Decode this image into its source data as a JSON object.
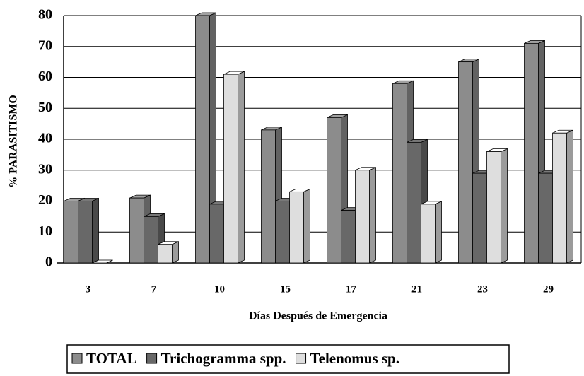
{
  "chart_data": {
    "type": "bar3d",
    "x_label": "Días Después de Emergencia",
    "y_label": "% PARASITISMO",
    "categories": [
      "3",
      "7",
      "10",
      "15",
      "17",
      "21",
      "23",
      "29"
    ],
    "series": [
      {
        "name": "TOTAL",
        "color": "#8c8c8c",
        "values": [
          20,
          21,
          80,
          43,
          47,
          58,
          65,
          71
        ]
      },
      {
        "name": "Trichogramma spp.",
        "color": "#686868",
        "values": [
          20,
          15,
          19,
          20,
          17,
          39,
          29,
          29
        ]
      },
      {
        "name": "Telenomus sp.",
        "color": "#dedede",
        "values": [
          0,
          6,
          61,
          23,
          30,
          19,
          36,
          42
        ]
      }
    ],
    "ylim": [
      0,
      80
    ],
    "yticks": [
      0,
      10,
      20,
      30,
      40,
      50,
      60,
      70,
      80
    ],
    "grid": true
  }
}
